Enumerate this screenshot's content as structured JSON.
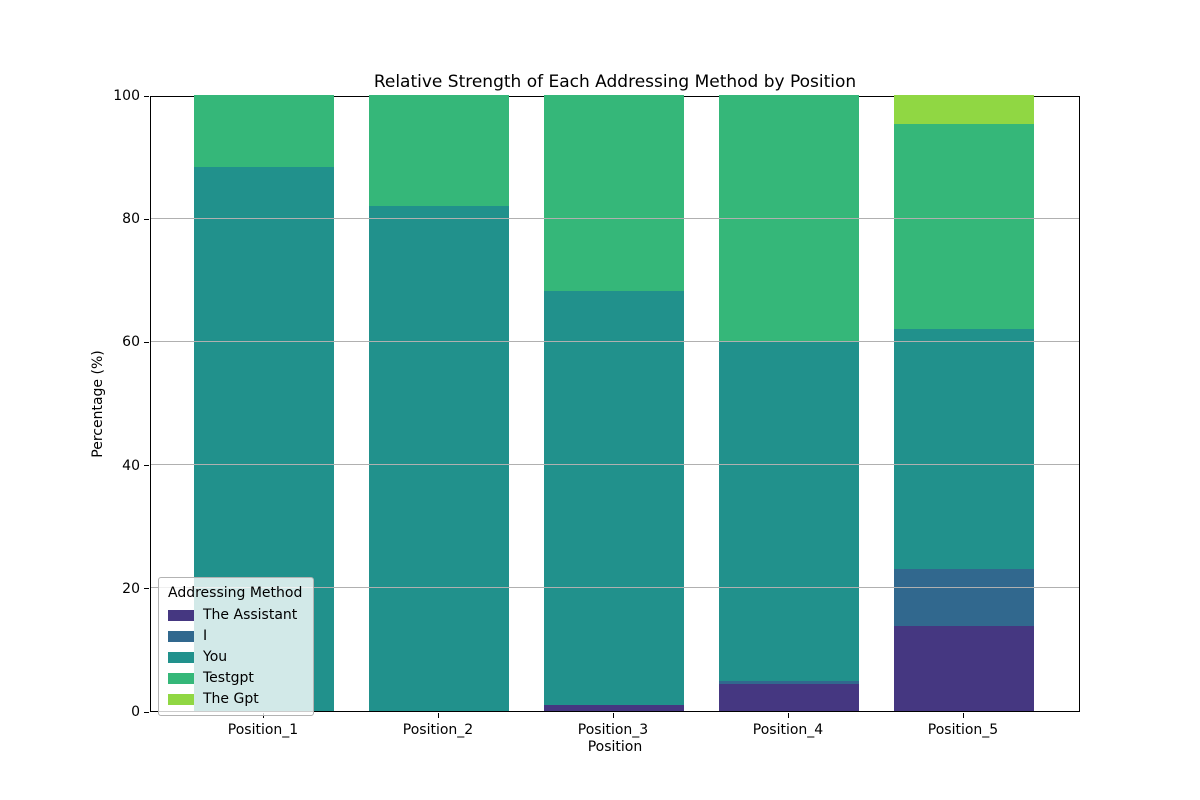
{
  "chart_data": {
    "type": "bar",
    "stacked": true,
    "title": "Relative Strength of Each Addressing Method by Position",
    "xlabel": "Position",
    "ylabel": "Percentage (%)",
    "categories": [
      "Position_1",
      "Position_2",
      "Position_3",
      "Position_4",
      "Position_5"
    ],
    "series": [
      {
        "name": "The Assistant",
        "color": "#453781",
        "values": [
          0,
          0,
          1.0,
          4.4,
          13.8
        ]
      },
      {
        "name": "I",
        "color": "#31688e",
        "values": [
          0,
          0,
          0,
          0.5,
          9.3
        ]
      },
      {
        "name": "You",
        "color": "#21918c",
        "values": [
          88.3,
          82.0,
          67.2,
          55.1,
          38.9
        ]
      },
      {
        "name": "Testgpt",
        "color": "#35b779",
        "values": [
          11.7,
          18.0,
          31.8,
          40.0,
          33.3
        ]
      },
      {
        "name": "The Gpt",
        "color": "#90d743",
        "values": [
          0,
          0,
          0,
          0,
          4.7
        ]
      }
    ],
    "ylim": [
      0,
      100
    ],
    "yticks": [
      0,
      20,
      40,
      60,
      80,
      100
    ],
    "grid": "horizontal",
    "grid_color": "#b0b0b0",
    "legend": {
      "title": "Addressing Method",
      "position": "lower-left"
    }
  }
}
